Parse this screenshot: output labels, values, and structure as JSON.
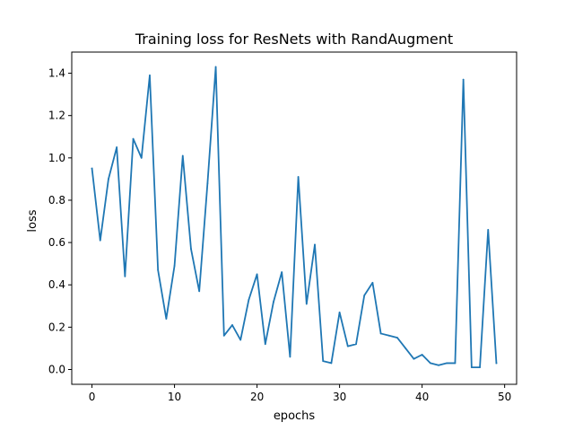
{
  "chart_data": {
    "type": "line",
    "title": "Training loss for ResNets with RandAugment",
    "xlabel": "epochs",
    "ylabel": "loss",
    "xlim": [
      -2.45,
      51.45
    ],
    "ylim": [
      -0.07,
      1.5
    ],
    "xticks": [
      0,
      10,
      20,
      30,
      40,
      50
    ],
    "yticks": [
      0.0,
      0.2,
      0.4,
      0.6,
      0.8,
      1.0,
      1.2,
      1.4
    ],
    "ytick_labels": [
      "0.0",
      "0.2",
      "0.4",
      "0.6",
      "0.8",
      "1.0",
      "1.2",
      "1.4"
    ],
    "grid": false,
    "series": [
      {
        "color": "#1f77b4",
        "x": [
          0,
          1,
          2,
          3,
          4,
          5,
          6,
          7,
          8,
          9,
          10,
          11,
          12,
          13,
          14,
          15,
          16,
          17,
          18,
          19,
          20,
          21,
          22,
          23,
          24,
          25,
          26,
          27,
          28,
          29,
          30,
          31,
          32,
          33,
          34,
          35,
          36,
          37,
          38,
          39,
          40,
          41,
          42,
          43,
          44,
          45,
          46,
          47,
          48,
          49
        ],
        "y": [
          0.95,
          0.61,
          0.9,
          1.05,
          0.44,
          1.09,
          1.0,
          1.39,
          0.47,
          0.24,
          0.49,
          1.01,
          0.57,
          0.37,
          0.88,
          1.43,
          0.16,
          0.21,
          0.14,
          0.33,
          0.45,
          0.12,
          0.32,
          0.46,
          0.06,
          0.91,
          0.31,
          0.59,
          0.04,
          0.03,
          0.27,
          0.11,
          0.12,
          0.35,
          0.41,
          0.17,
          0.16,
          0.15,
          0.1,
          0.05,
          0.07,
          0.03,
          0.02,
          0.03,
          0.03,
          1.37,
          0.01,
          0.01,
          0.66,
          0.03
        ]
      }
    ]
  }
}
